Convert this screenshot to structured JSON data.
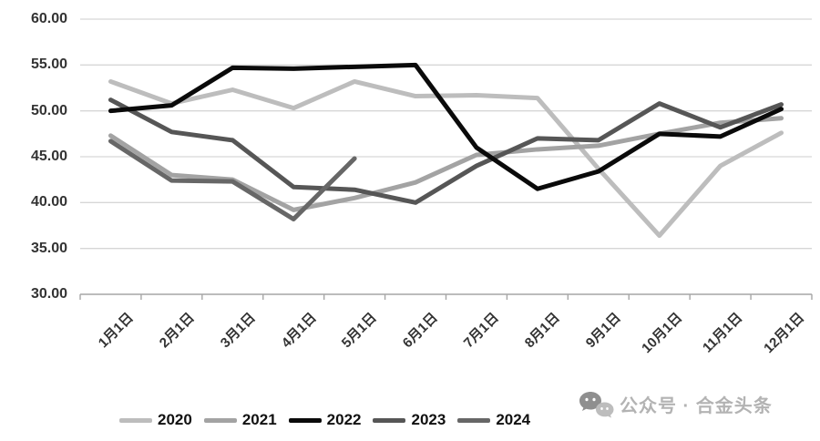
{
  "chart_data": {
    "type": "line",
    "title": "",
    "categories": [
      "1月1日",
      "2月1日",
      "3月1日",
      "4月1日",
      "5月1日",
      "6月1日",
      "7月1日",
      "8月1日",
      "9月1日",
      "10月1日",
      "11月1日",
      "12月1日"
    ],
    "series": [
      {
        "name": "2020",
        "color": "#bdbdbd",
        "values": [
          53.2,
          50.8,
          52.3,
          50.3,
          53.2,
          51.6,
          51.7,
          51.4,
          43.7,
          36.4,
          44.0,
          47.6
        ]
      },
      {
        "name": "2021",
        "color": "#a3a3a3",
        "values": [
          47.3,
          43.0,
          42.5,
          39.2,
          40.5,
          42.2,
          45.2,
          45.8,
          46.2,
          47.5,
          48.7,
          49.2
        ]
      },
      {
        "name": "2022",
        "color": "#0a0a0a",
        "values": [
          50.0,
          50.6,
          54.7,
          54.6,
          54.8,
          55.0,
          46.0,
          41.5,
          43.4,
          47.5,
          47.2,
          50.2
        ]
      },
      {
        "name": "2023",
        "color": "#565656",
        "values": [
          51.2,
          47.7,
          46.8,
          41.7,
          41.4,
          40.0,
          44.0,
          47.0,
          46.8,
          50.8,
          48.2,
          50.7
        ]
      },
      {
        "name": "2024",
        "color": "#676767",
        "values": [
          46.7,
          42.4,
          42.3,
          38.2,
          44.8,
          null,
          null,
          null,
          null,
          null,
          null,
          null
        ]
      }
    ],
    "y_axis": {
      "min": 30,
      "max": 60,
      "step": 5,
      "ticks": [
        "60.00",
        "55.00",
        "50.00",
        "45.00",
        "40.00",
        "35.00",
        "30.00"
      ]
    },
    "x_axis": {
      "label": "",
      "tick_rotation_deg": -45
    },
    "grid": true,
    "legend_position": "bottom",
    "legend_entries": [
      "2020",
      "2021",
      "2022",
      "2023",
      "2024"
    ]
  },
  "watermark": {
    "text": "公众号 · 合金头条",
    "icon": "wechat-chat-bubbles-icon",
    "color": "#b3b3b3"
  }
}
